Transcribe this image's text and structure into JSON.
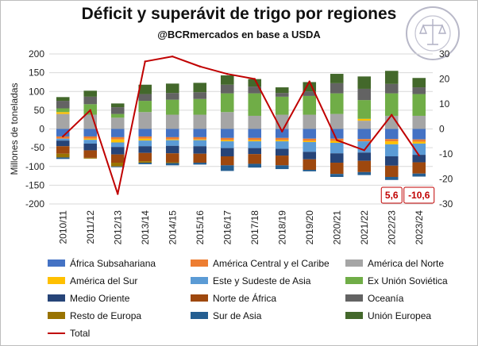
{
  "title": "Déficit y superávit de trigo por regiones",
  "subtitle": "@BCRmercados en base a USDA",
  "colors": {
    "Africa_Sub": "#4472C4",
    "America_Central": "#ED7D31",
    "America_Norte": "#A5A5A5",
    "America_Sur": "#FFC000",
    "Este_Asia": "#5B9BD5",
    "Ex_URSS": "#70AD47",
    "Medio_Oriente": "#264478",
    "Norte_Africa": "#9E480E",
    "Oceania": "#636363",
    "Resto_Europa": "#997300",
    "Sur_Asia": "#255E91",
    "UE": "#43682B",
    "Total": "#C00000"
  },
  "chart_data": {
    "type": "bar",
    "stacked": true,
    "categories": [
      "2010/11",
      "2011/12",
      "2012/13",
      "2013/14",
      "2014/15",
      "2015/16",
      "2016/17",
      "2017/18",
      "2018/19",
      "2019/20",
      "2020/21",
      "2021/22",
      "2022/23",
      "2023/24"
    ],
    "ylabel": "Millones de toneladas",
    "ylim": [
      -200,
      200
    ],
    "yticks": [
      "200",
      "150",
      "100",
      "50",
      "0",
      "-50",
      "-100",
      "-150",
      "-200"
    ],
    "y2lim": [
      -30,
      30
    ],
    "y2ticks": [
      "30",
      "20",
      "10",
      "0",
      "-10",
      "-20",
      "-30"
    ],
    "grid": true,
    "legend_position": "bottom",
    "series": [
      {
        "name": "África Subsahariana",
        "key": "Africa_Sub",
        "values": [
          -20,
          -20,
          -22,
          -20,
          -22,
          -22,
          -24,
          -24,
          -24,
          -26,
          -26,
          -27,
          -27,
          -28
        ]
      },
      {
        "name": "América Central y el Caribe",
        "key": "America_Central",
        "values": [
          -6,
          -6,
          -6,
          -6,
          -6,
          -6,
          -6,
          -6,
          -6,
          -6,
          -6,
          -6,
          -6,
          -6
        ]
      },
      {
        "name": "América del Norte",
        "key": "America_Norte",
        "values": [
          40,
          38,
          30,
          45,
          38,
          38,
          45,
          35,
          38,
          38,
          40,
          22,
          35,
          35
        ]
      },
      {
        "name": "América del Sur",
        "key": "America_Sur",
        "values": [
          5,
          -3,
          -8,
          -5,
          -2,
          -2,
          -3,
          -3,
          -3,
          -3,
          -5,
          5,
          -8,
          -5
        ]
      },
      {
        "name": "Este y Sudeste de Asia",
        "key": "Este_Asia",
        "values": [
          -5,
          -10,
          -12,
          -15,
          -15,
          -16,
          -18,
          -18,
          -20,
          -26,
          -28,
          -30,
          -32,
          -30
        ]
      },
      {
        "name": "Ex Unión Soviética",
        "key": "Ex_URSS",
        "values": [
          10,
          28,
          10,
          30,
          40,
          42,
          50,
          60,
          48,
          50,
          55,
          50,
          60,
          58
        ]
      },
      {
        "name": "Medio Oriente",
        "key": "Medio_Oriente",
        "values": [
          -15,
          -18,
          -20,
          -18,
          -20,
          -20,
          -22,
          -16,
          -18,
          -20,
          -25,
          -22,
          -25,
          -20
        ]
      },
      {
        "name": "Norte de África",
        "key": "Norte_Africa",
        "values": [
          -20,
          -20,
          -22,
          -22,
          -24,
          -24,
          -24,
          -26,
          -26,
          -28,
          -30,
          -30,
          -30,
          -30
        ]
      },
      {
        "name": "Oceanía",
        "key": "Oceania",
        "values": [
          20,
          20,
          18,
          18,
          18,
          18,
          23,
          18,
          10,
          12,
          27,
          30,
          25,
          18
        ]
      },
      {
        "name": "Resto de Europa",
        "key": "Resto_Europa",
        "values": [
          -10,
          -2,
          -10,
          -4,
          -2,
          0,
          0,
          0,
          0,
          0,
          0,
          0,
          0,
          0
        ]
      },
      {
        "name": "Sur de Asia",
        "key": "Sur_Asia",
        "values": [
          -4,
          0,
          -2,
          -4,
          -6,
          -5,
          -15,
          -10,
          -10,
          -4,
          -8,
          -8,
          -8,
          -8
        ]
      },
      {
        "name": "Unión Europea",
        "key": "UE",
        "values": [
          10,
          16,
          10,
          25,
          25,
          25,
          25,
          20,
          15,
          25,
          25,
          33,
          35,
          25
        ]
      }
    ],
    "line": {
      "name": "Total",
      "key": "Total",
      "axis": "right",
      "values": [
        -3,
        7.5,
        -26,
        27,
        29,
        25,
        22,
        20,
        -1,
        19,
        -4.5,
        -8.5,
        5.6,
        -10.6
      ]
    },
    "annotations": [
      {
        "category": "2022/23",
        "text": "5,6"
      },
      {
        "category": "2023/24",
        "text": "-10,6"
      }
    ]
  }
}
